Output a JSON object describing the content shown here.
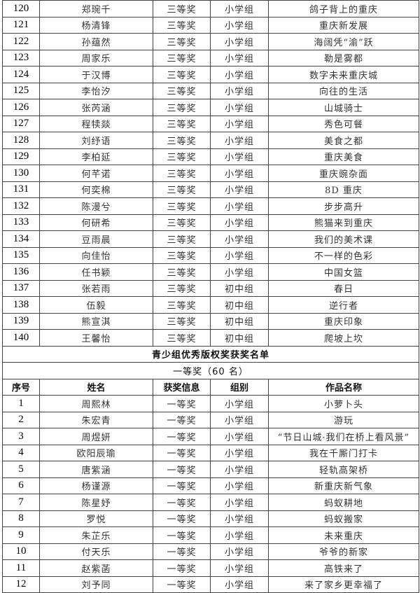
{
  "rows_top": [
    [
      "120",
      "郑琬千",
      "三等奖",
      "小学组",
      "鸽子背上的重庆"
    ],
    [
      "121",
      "杨清锋",
      "三等奖",
      "小学组",
      "重庆新发展"
    ],
    [
      "122",
      "孙蕴然",
      "三等奖",
      "小学组",
      "海阔凭“渝”跃"
    ],
    [
      "123",
      "周家乐",
      "三等奖",
      "小学组",
      "勒是雾都"
    ],
    [
      "124",
      "于汉博",
      "三等奖",
      "小学组",
      "数字未来重庆城"
    ],
    [
      "125",
      "李怡汐",
      "三等奖",
      "小学组",
      "向往的生活"
    ],
    [
      "126",
      "张芮涵",
      "三等奖",
      "小学组",
      "山城骑士"
    ],
    [
      "127",
      "程犊燚",
      "三等奖",
      "小学组",
      "秀色可餐"
    ],
    [
      "128",
      "刘纾语",
      "三等奖",
      "小学组",
      "美食之都"
    ],
    [
      "129",
      "李柏延",
      "三等奖",
      "小学组",
      "重庆美食"
    ],
    [
      "130",
      "何芊诺",
      "三等奖",
      "小学组",
      "重庆豌杂面"
    ],
    [
      "131",
      "何奕棉",
      "三等奖",
      "小学组",
      "8D 重庆"
    ],
    [
      "132",
      "陈漫兮",
      "三等奖",
      "小学组",
      "步步高升"
    ],
    [
      "133",
      "何研希",
      "三等奖",
      "小学组",
      "熊猫来到重庆"
    ],
    [
      "134",
      "豆雨晨",
      "三等奖",
      "小学组",
      "我们的美术课"
    ],
    [
      "135",
      "向佳怡",
      "三等奖",
      "小学组",
      "不一样的色彩"
    ],
    [
      "136",
      "任书颖",
      "三等奖",
      "小学组",
      "中国女篮"
    ],
    [
      "137",
      "张若雨",
      "三等奖",
      "初中组",
      "春日"
    ],
    [
      "138",
      "伍毅",
      "三等奖",
      "初中组",
      "逆行者"
    ],
    [
      "139",
      "熊宣淇",
      "三等奖",
      "初中组",
      "重庆印象"
    ],
    [
      "140",
      "王馨怡",
      "三等奖",
      "初中组",
      "爬坡上坎"
    ]
  ],
  "section_title": "青少组优秀版权奖获奖名单",
  "subsection_title": "一等奖（60 名）",
  "headers": [
    "序号",
    "姓名",
    "获奖信息",
    "组别",
    "作品名称"
  ],
  "rows_bottom": [
    [
      "1",
      "周熙林",
      "一等奖",
      "小学组",
      "小萝卜头"
    ],
    [
      "2",
      "朱宏青",
      "一等奖",
      "小学组",
      "游玩"
    ],
    [
      "3",
      "周煜妍",
      "一等奖",
      "小学组",
      "“节日山城·我们在桥上看风景”"
    ],
    [
      "4",
      "欧阳辰瑜",
      "一等奖",
      "小学组",
      "我在千厮门打卡"
    ],
    [
      "5",
      "唐紫涵",
      "一等奖",
      "小学组",
      "轻轨高架桥"
    ],
    [
      "6",
      "杨谨源",
      "一等奖",
      "小学组",
      "新重庆新气象"
    ],
    [
      "7",
      "陈星妤",
      "一等奖",
      "小学组",
      "蚂蚁耕地"
    ],
    [
      "8",
      "罗悦",
      "一等奖",
      "小学组",
      "蚂蚁搬家"
    ],
    [
      "9",
      "朱芷乐",
      "一等奖",
      "小学组",
      "未来重庆"
    ],
    [
      "10",
      "付天乐",
      "一等奖",
      "小学组",
      "爷爷的新家"
    ],
    [
      "11",
      "赵紫菡",
      "一等奖",
      "小学组",
      "高铁来了"
    ],
    [
      "12",
      "刘予同",
      "一等奖",
      "小学组",
      "来了家乡更幸福了"
    ]
  ]
}
